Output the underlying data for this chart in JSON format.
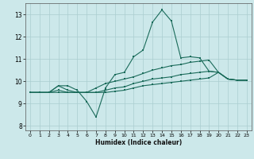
{
  "title": "",
  "xlabel": "Humidex (Indice chaleur)",
  "bg_color": "#cce8ea",
  "grid_color": "#aacdd0",
  "line_color": "#1a6b5a",
  "xlim": [
    -0.5,
    23.5
  ],
  "ylim": [
    7.8,
    13.5
  ],
  "xticks": [
    0,
    1,
    2,
    3,
    4,
    5,
    6,
    7,
    8,
    9,
    10,
    11,
    12,
    13,
    14,
    15,
    16,
    17,
    18,
    19,
    20,
    21,
    22,
    23
  ],
  "yticks": [
    8,
    9,
    10,
    11,
    12,
    13
  ],
  "line1_x": [
    0,
    1,
    2,
    3,
    4,
    5,
    6,
    7,
    8,
    9,
    10,
    11,
    12,
    13,
    14,
    15,
    16,
    17,
    18,
    19,
    20,
    21,
    22,
    23
  ],
  "line1_y": [
    9.5,
    9.5,
    9.5,
    9.8,
    9.8,
    9.6,
    9.1,
    8.4,
    9.7,
    10.3,
    10.4,
    11.1,
    11.4,
    12.65,
    13.2,
    12.7,
    11.05,
    11.1,
    11.05,
    10.45,
    10.4,
    10.1,
    10.05,
    10.05
  ],
  "line2_x": [
    0,
    1,
    2,
    3,
    4,
    5,
    6,
    7,
    8,
    9,
    10,
    11,
    12,
    13,
    14,
    15,
    16,
    17,
    18,
    19,
    20,
    21,
    22,
    23
  ],
  "line2_y": [
    9.5,
    9.5,
    9.5,
    9.8,
    9.6,
    9.5,
    9.5,
    9.7,
    9.9,
    10.0,
    10.1,
    10.2,
    10.35,
    10.5,
    10.6,
    10.7,
    10.75,
    10.85,
    10.9,
    10.95,
    10.4,
    10.1,
    10.05,
    10.05
  ],
  "line3_x": [
    0,
    1,
    2,
    3,
    4,
    5,
    6,
    7,
    8,
    9,
    10,
    11,
    12,
    13,
    14,
    15,
    16,
    17,
    18,
    19,
    20,
    21,
    22,
    23
  ],
  "line3_y": [
    9.5,
    9.5,
    9.5,
    9.6,
    9.5,
    9.5,
    9.5,
    9.5,
    9.6,
    9.7,
    9.75,
    9.9,
    10.0,
    10.1,
    10.15,
    10.2,
    10.3,
    10.35,
    10.4,
    10.45,
    10.4,
    10.1,
    10.05,
    10.05
  ],
  "line4_x": [
    0,
    1,
    2,
    3,
    4,
    5,
    6,
    7,
    8,
    9,
    10,
    11,
    12,
    13,
    14,
    15,
    16,
    17,
    18,
    19,
    20,
    21,
    22,
    23
  ],
  "line4_y": [
    9.5,
    9.5,
    9.5,
    9.5,
    9.5,
    9.5,
    9.5,
    9.5,
    9.5,
    9.55,
    9.6,
    9.7,
    9.8,
    9.85,
    9.9,
    9.95,
    10.0,
    10.05,
    10.1,
    10.15,
    10.4,
    10.1,
    10.05,
    10.05
  ]
}
